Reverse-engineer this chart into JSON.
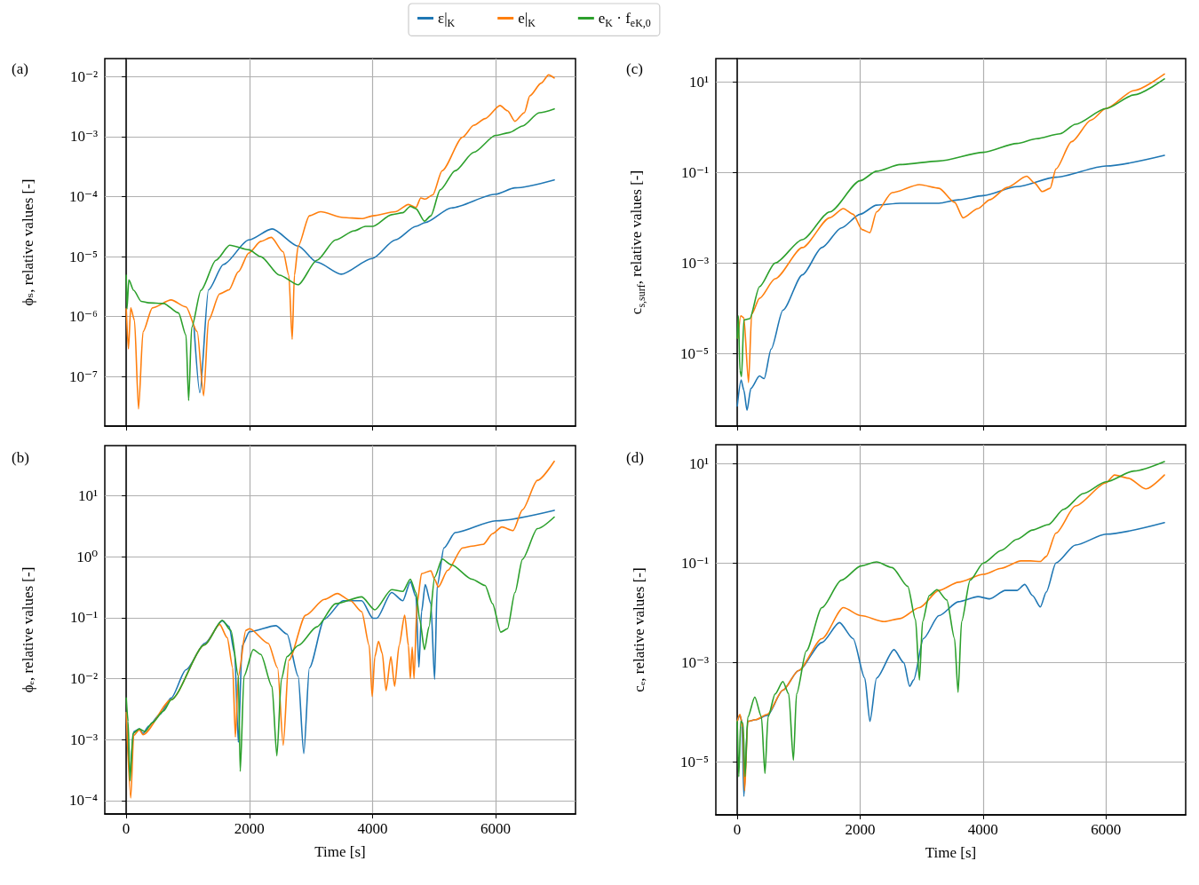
{
  "chart_data": [
    {
      "type": "line",
      "title": "(a)",
      "ylabel": "ϕₛ, relative values [-]",
      "log": "y",
      "grid": true,
      "legend": "top",
      "tick_labels": "y",
      "xlim": [
        -348,
        7298
      ],
      "xticks": [
        0,
        2000,
        4000,
        6000
      ],
      "ylim": [
        1.5e-08,
        0.02
      ],
      "yticks": [
        {
          "value": 1e-07,
          "label": "10⁻⁷"
        },
        {
          "value": 1e-06,
          "label": "10⁻⁶"
        },
        {
          "value": 1e-05,
          "label": "10⁻⁵"
        },
        {
          "value": 0.0001,
          "label": "10⁻⁴"
        },
        {
          "value": 0.001,
          "label": "10⁻³"
        },
        {
          "value": 0.01,
          "label": "10⁻²"
        }
      ],
      "series": [
        {
          "name": "ε|$_{K}$",
          "color": "#1f77b4",
          "x": [
            1100,
            1196,
            1336,
            1579,
            1991,
            2368,
            2793,
            3097,
            3491,
            3995,
            4372,
            4706,
            4857,
            5282,
            6000,
            6314,
            6952
          ],
          "values": [
            7e-07,
            5.4e-08,
            2.8e-06,
            7.4e-06,
            1.9e-05,
            2.9e-05,
            1.5e-05,
            8.1e-06,
            5.1e-06,
            9.3e-06,
            1.9e-05,
            3.2e-05,
            3.7e-05,
            6.5e-05,
            0.00011,
            0.00014,
            0.00019
          ]
        },
        {
          "name": "e|$_{K}$",
          "color": "#ff7f0e",
          "x": [
            0,
            36,
            73,
            134,
            200,
            273,
            425,
            729,
            971,
            1154,
            1257,
            1336,
            1518,
            1670,
            1821,
            1991,
            2186,
            2356,
            2550,
            2641,
            2696,
            2732,
            2793,
            2975,
            3157,
            3522,
            3825,
            4007,
            4372,
            4584,
            4706,
            4785,
            4857,
            4979,
            5131,
            5465,
            5647,
            5829,
            6072,
            6193,
            6314,
            6466,
            6557,
            6740,
            6861,
            6952
          ],
          "values": [
            1.35e-06,
            2.9e-07,
            1.4e-06,
            8.7e-07,
            2.9e-08,
            5.6e-07,
            1.4e-06,
            1.9e-06,
            1.45e-06,
            5.6e-07,
            4.8e-08,
            8.7e-07,
            2.4e-06,
            2.8e-06,
            5.6e-06,
            1.15e-05,
            1.8e-05,
            2.1e-05,
            1.2e-05,
            4.9e-06,
            4.2e-07,
            4.9e-06,
            1.5e-05,
            4.8e-05,
            5.6e-05,
            4.5e-05,
            4.3e-05,
            4.8e-05,
            5.6e-05,
            7.4e-05,
            6.6e-05,
            9.5e-05,
            9.1e-05,
            0.000107,
            0.00027,
            0.00098,
            0.00155,
            0.002,
            0.0033,
            0.0027,
            0.0018,
            0.0025,
            0.0048,
            0.0078,
            0.0107,
            0.0095
          ]
        },
        {
          "name": "e$_{K}$ · f$_{eK,0}$",
          "color": "#2ca02c",
          "x": [
            0,
            12,
            42,
            121,
            243,
            364,
            607,
            850,
            971,
            1014,
            1063,
            1214,
            1457,
            1682,
            1991,
            2186,
            2489,
            2793,
            3097,
            3400,
            3704,
            3886,
            4007,
            4311,
            4493,
            4615,
            4706,
            4845,
            4948,
            5100,
            5343,
            5647,
            6000,
            6223,
            6436,
            6709,
            6952
          ],
          "values": [
            4.9e-06,
            1.35e-06,
            4.1e-06,
            2.75e-06,
            1.8e-06,
            1.7e-06,
            1.66e-06,
            1.15e-06,
            4.9e-07,
            4e-08,
            6.6e-07,
            2.75e-06,
            8.7e-06,
            1.55e-05,
            1.3e-05,
            1e-05,
            4.9e-06,
            3.4e-06,
            8.7e-06,
            1.9e-05,
            2.7e-05,
            3.2e-05,
            3.2e-05,
            5e-05,
            5.4e-05,
            6.9e-05,
            6.3e-05,
            3.9e-05,
            4.8e-05,
            0.00013,
            0.00027,
            0.00055,
            0.00105,
            0.00117,
            0.0015,
            0.0025,
            0.0029
          ]
        }
      ]
    },
    {
      "type": "line",
      "title": "(c)",
      "ylabel": "c$_{s,surf}$, relative values [-]",
      "log": "y",
      "grid": true,
      "tick_labels": "y",
      "xlim": [
        -348,
        7298
      ],
      "xticks": [
        0,
        2000,
        4000,
        6000
      ],
      "ylim": [
        2.5e-07,
        33
      ],
      "yticks": [
        {
          "value": 1e-05,
          "label": "10⁻⁵"
        },
        {
          "value": 0.001,
          "label": "10⁻³"
        },
        {
          "value": 0.1,
          "label": "10⁻¹"
        },
        {
          "value": 10,
          "label": "10¹"
        }
      ],
      "series": [
        {
          "color": "#1f77b4",
          "x": [
            0,
            63,
            108,
            159,
            222,
            362,
            438,
            552,
            743,
            1060,
            1378,
            1695,
            2000,
            2267,
            2648,
            3283,
            3600,
            4006,
            4552,
            5187,
            6000,
            6952
          ],
          "values": [
            6.9e-07,
            2.6e-06,
            1.55e-06,
            5.6e-07,
            1.7e-06,
            3.2e-06,
            2.8e-06,
            1.26e-05,
            9.1e-05,
            0.00055,
            0.0022,
            0.006,
            0.012,
            0.019,
            0.021,
            0.021,
            0.025,
            0.031,
            0.049,
            0.079,
            0.14,
            0.24
          ]
        },
        {
          "color": "#ff7f0e",
          "x": [
            13,
            57,
            108,
            184,
            235,
            362,
            616,
            1060,
            1505,
            1727,
            1886,
            2032,
            2159,
            2267,
            2521,
            2965,
            3283,
            3537,
            3676,
            3917,
            4108,
            4394,
            4711,
            4838,
            4965,
            5092,
            5187,
            5441,
            5759,
            6000,
            6457,
            6952
          ],
          "values": [
            2.2e-05,
            6.8e-05,
            6.2e-05,
            2.3e-06,
            7.4e-05,
            0.000166,
            0.00045,
            0.0022,
            0.01,
            0.016,
            0.012,
            0.0055,
            0.0047,
            0.0135,
            0.036,
            0.054,
            0.045,
            0.022,
            0.01,
            0.016,
            0.025,
            0.047,
            0.083,
            0.059,
            0.038,
            0.045,
            0.12,
            0.48,
            1.45,
            2.6,
            6.5,
            15
          ]
        },
        {
          "color": "#2ca02c",
          "x": [
            0,
            19,
            44,
            70,
            108,
            203,
            362,
            616,
            1060,
            1505,
            2000,
            2267,
            2648,
            3283,
            4006,
            4552,
            4870,
            5251,
            5505,
            6000,
            6457,
            6952
          ],
          "values": [
            2.2e-05,
            6.8e-05,
            4.2e-06,
            3.1e-06,
            5.5e-05,
            5.9e-05,
            0.0003,
            0.001,
            0.0033,
            0.0135,
            0.066,
            0.107,
            0.15,
            0.18,
            0.28,
            0.44,
            0.56,
            0.72,
            1.17,
            2.6,
            5.2,
            11.7
          ]
        }
      ]
    },
    {
      "type": "line",
      "title": "(b)",
      "xlabel": "Time [s]",
      "ylabel": "ϕₑ, relative values [-]",
      "log": "y",
      "grid": true,
      "xlim": [
        -348,
        7298
      ],
      "xticks": [
        0,
        2000,
        4000,
        6000
      ],
      "ylim": [
        6e-05,
        67
      ],
      "yticks": [
        {
          "value": 0.0001,
          "label": "10⁻⁴"
        },
        {
          "value": 0.001,
          "label": "10⁻³"
        },
        {
          "value": 0.01,
          "label": "10⁻²"
        },
        {
          "value": 0.1,
          "label": "10⁻¹"
        },
        {
          "value": 1,
          "label": "10⁰"
        },
        {
          "value": 10,
          "label": "10¹"
        }
      ],
      "series": [
        {
          "color": "#1f77b4",
          "x": [
            0,
            61,
            121,
            213,
            273,
            364,
            546,
            729,
            971,
            1275,
            1560,
            1670,
            1761,
            1821,
            1882,
            2003,
            2429,
            2611,
            2793,
            2884,
            2975,
            3218,
            3522,
            3825,
            4007,
            4068,
            4311,
            4493,
            4615,
            4706,
            4754,
            4797,
            4857,
            4948,
            5009,
            5052,
            5161,
            5343,
            6000,
            6952
          ],
          "values": [
            0.0028,
            0.00028,
            0.00135,
            0.0015,
            0.00126,
            0.00166,
            0.0026,
            0.0048,
            0.014,
            0.038,
            0.089,
            0.072,
            0.026,
            0.0009,
            0.035,
            0.059,
            0.074,
            0.054,
            0.011,
            0.00059,
            0.015,
            0.095,
            0.19,
            0.19,
            0.098,
            0.098,
            0.26,
            0.19,
            0.39,
            0.22,
            0.0155,
            0.126,
            0.35,
            0.17,
            0.0098,
            0.34,
            1.4,
            2.5,
            3.9,
            5.8
          ]
        },
        {
          "color": "#ff7f0e",
          "x": [
            0,
            73,
            121,
            213,
            273,
            729,
            1275,
            1518,
            1640,
            1730,
            1773,
            1821,
            1943,
            2003,
            2307,
            2459,
            2550,
            2641,
            2914,
            3218,
            3430,
            3643,
            3825,
            3947,
            3995,
            4038,
            4098,
            4159,
            4220,
            4299,
            4360,
            4432,
            4523,
            4584,
            4615,
            4645,
            4675,
            4724,
            4797,
            4948,
            5009,
            5070,
            5221,
            5464,
            5616,
            5799,
            5950,
            6102,
            6284,
            6436,
            6679,
            6952
          ],
          "values": [
            0.0028,
            0.00011,
            0.00117,
            0.00145,
            0.0012,
            0.0045,
            0.036,
            0.078,
            0.047,
            0.015,
            0.0011,
            0.011,
            0.062,
            0.066,
            0.038,
            0.015,
            0.00081,
            0.02,
            0.11,
            0.2,
            0.25,
            0.19,
            0.126,
            0.035,
            0.0051,
            0.023,
            0.041,
            0.026,
            0.0064,
            0.023,
            0.0075,
            0.035,
            0.11,
            0.035,
            0.01,
            0.033,
            0.01,
            0.17,
            0.53,
            0.59,
            0.43,
            0.32,
            0.6,
            1.4,
            1.5,
            1.6,
            2.4,
            3.1,
            2.7,
            5.9,
            18,
            37
          ]
        },
        {
          "color": "#2ca02c",
          "x": [
            0,
            30,
            61,
            109,
            213,
            304,
            425,
            607,
            729,
            1275,
            1560,
            1700,
            1821,
            1852,
            1913,
            2064,
            2186,
            2368,
            2447,
            2520,
            2611,
            2793,
            3097,
            3400,
            3825,
            4038,
            4311,
            4493,
            4615,
            4706,
            4766,
            4845,
            4918,
            5009,
            5131,
            5282,
            5616,
            5829,
            5950,
            6084,
            6193,
            6314,
            6436,
            6679,
            6952
          ],
          "values": [
            0.0048,
            0.002,
            0.00021,
            0.00126,
            0.0015,
            0.00135,
            0.0019,
            0.00295,
            0.0045,
            0.036,
            0.091,
            0.062,
            0.011,
            0.0003,
            0.011,
            0.03,
            0.025,
            0.0074,
            0.00054,
            0.0098,
            0.023,
            0.035,
            0.071,
            0.17,
            0.22,
            0.135,
            0.29,
            0.27,
            0.43,
            0.26,
            0.095,
            0.03,
            0.071,
            0.46,
            0.92,
            0.74,
            0.43,
            0.34,
            0.17,
            0.058,
            0.066,
            0.26,
            0.91,
            2.9,
            4.5
          ]
        }
      ]
    },
    {
      "type": "line",
      "title": "(d)",
      "xlabel": "Time [s]",
      "ylabel": "cₑ, relative values [-]",
      "log": "y",
      "grid": true,
      "xlim": [
        -348,
        7298
      ],
      "xticks": [
        0,
        2000,
        4000,
        6000
      ],
      "ylim": [
        8.5e-07,
        24
      ],
      "yticks": [
        {
          "value": 1e-05,
          "label": "10⁻⁵"
        },
        {
          "value": 0.001,
          "label": "10⁻³"
        },
        {
          "value": 0.1,
          "label": "10⁻¹"
        },
        {
          "value": 10,
          "label": "10¹"
        }
      ],
      "series": [
        {
          "color": "#1f77b4",
          "x": [
            0,
            44,
            76,
            108,
            171,
            298,
            489,
            743,
            997,
            1378,
            1663,
            1886,
            2076,
            2159,
            2267,
            2552,
            2711,
            2806,
            2870,
            3029,
            3283,
            3600,
            3917,
            4108,
            4362,
            4552,
            4679,
            4806,
            4933,
            5029,
            5187,
            5505,
            6000,
            6952
          ],
          "values": [
            6.5e-05,
            8.5e-05,
            6.5e-05,
            2e-06,
            6.5e-05,
            7e-05,
            8.5e-05,
            0.000275,
            0.00068,
            0.0025,
            0.0063,
            0.003,
            0.00048,
            6.5e-05,
            0.00048,
            0.0018,
            0.00098,
            0.00033,
            0.00044,
            0.003,
            0.0087,
            0.0166,
            0.021,
            0.019,
            0.028,
            0.028,
            0.037,
            0.022,
            0.013,
            0.026,
            0.1,
            0.23,
            0.38,
            0.65
          ]
        },
        {
          "color": "#ff7f0e",
          "x": [
            0,
            44,
            89,
            121,
            171,
            298,
            489,
            743,
            997,
            1378,
            1727,
            2013,
            2394,
            2648,
            2965,
            3283,
            3600,
            4006,
            4298,
            4616,
            4775,
            4933,
            5029,
            5187,
            5505,
            6000,
            6140,
            6362,
            6648,
            6952
          ],
          "values": [
            6.5e-05,
            9e-05,
            4.9e-05,
            2.6e-06,
            6.5e-05,
            7e-05,
            9e-05,
            0.000275,
            0.00068,
            0.003,
            0.0126,
            0.0087,
            0.0066,
            0.0076,
            0.0126,
            0.028,
            0.041,
            0.059,
            0.078,
            0.11,
            0.11,
            0.107,
            0.135,
            0.4,
            1.4,
            4.1,
            5.9,
            5.1,
            3.1,
            5.9
          ]
        },
        {
          "color": "#2ca02c",
          "x": [
            0,
            25,
            57,
            95,
            127,
            171,
            286,
            394,
            451,
            502,
            616,
            743,
            838,
            914,
            965,
            1124,
            1378,
            1695,
            2013,
            2267,
            2521,
            2775,
            2902,
            2965,
            3016,
            3124,
            3251,
            3410,
            3537,
            3594,
            3651,
            3790,
            4006,
            4298,
            4552,
            4806,
            5060,
            5314,
            5632,
            6000,
            6457,
            6952
          ],
          "values": [
            6.5e-05,
            5e-06,
            6.5e-05,
            5.9e-05,
            5e-06,
            7.8e-05,
            0.0002,
            8e-05,
            5.8e-06,
            8e-05,
            0.00023,
            0.00041,
            0.00023,
            1.07e-05,
            0.00023,
            0.0017,
            0.0126,
            0.045,
            0.087,
            0.105,
            0.081,
            0.034,
            0.0072,
            0.00044,
            0.0066,
            0.022,
            0.029,
            0.018,
            0.003,
            0.00025,
            0.0066,
            0.045,
            0.1,
            0.18,
            0.3,
            0.46,
            0.59,
            1.2,
            2.5,
            4.3,
            7.1,
            11
          ]
        }
      ]
    }
  ]
}
